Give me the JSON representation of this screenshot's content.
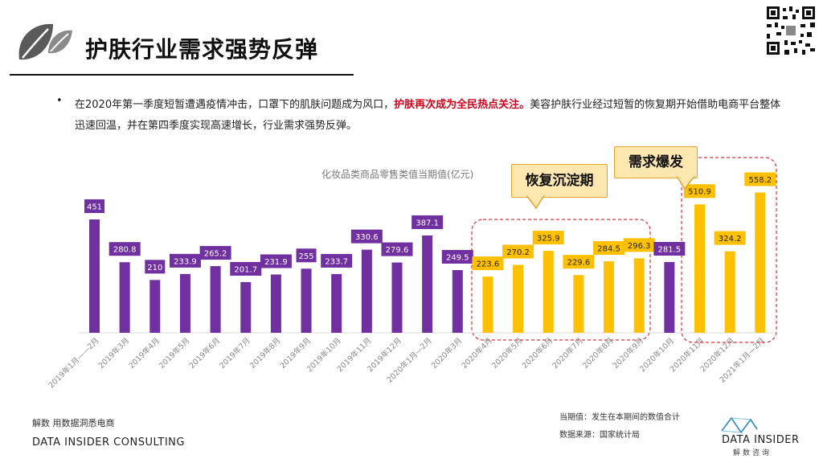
{
  "header": {
    "title": "护肤行业需求强势反弹",
    "bullet": "•"
  },
  "body": {
    "text_before": "在2020年第一季度短暂遭遇疫情冲击，口罩下的肌肤问题成为风口，",
    "text_highlight": "护肤再次成为全民热点关注。",
    "text_after": "美容护肤行业经过短暂的恢复期开始借助电商平台整体迅速回温，并在第四季度实现高速增长，行业需求强势反弹。"
  },
  "callouts": {
    "recovery": "恢复沉淀期",
    "burst": "需求爆发"
  },
  "footer": {
    "source_left": "解数 用数据洞悉电商",
    "company": "DATA INSIDER CONSULTING",
    "note1": "当期值：发生在本期间的数值合计",
    "note2": "数据来源：国家统计局",
    "brand_name": "DATA INSIDER",
    "brand_sub": "解数咨询"
  },
  "colors": {
    "purple": "#7030a0",
    "yellow": "#ffc000",
    "highlight_red": "#d0021b",
    "dash_red": "#e0303a"
  },
  "chart_data": {
    "type": "bar",
    "title": "化妆品类商品零售类值当期值(亿元)",
    "categories": [
      "2019年1月——2月",
      "2019年3月",
      "2019年4月",
      "2019年5月",
      "2019年6月",
      "2019年7月",
      "2019年8月",
      "2019年9月",
      "2019年10月",
      "2019年11月",
      "2019年12月",
      "2020年1月—2月",
      "2020年3月",
      "2020年4月",
      "2020年5月",
      "2020年6月",
      "2020年7月",
      "2020年8月",
      "2020年9月",
      "2020年10月",
      "2020年11月",
      "2020年12月",
      "2021年1月—2月"
    ],
    "values": [
      451,
      280.8,
      210,
      233.9,
      265.2,
      201.7,
      231.9,
      255,
      233.7,
      330.6,
      279.6,
      387.1,
      249.5,
      223.6,
      270.2,
      325.9,
      229.6,
      284.5,
      296.3,
      281.5,
      510.9,
      324.2,
      558.2
    ],
    "labels": [
      "451",
      "280.8",
      "210",
      "233.9",
      "265.2",
      "201.7",
      "231.9",
      "255",
      "233.7",
      "330.6",
      "279.6",
      "387.1",
      "249.5",
      "223.6",
      "270.2",
      "325.9",
      "229.6",
      "284.5",
      "296.3",
      "281.5",
      "510.9",
      "324.2",
      "558.2"
    ],
    "highlight": [
      "p",
      "p",
      "p",
      "p",
      "p",
      "p",
      "p",
      "p",
      "p",
      "p",
      "p",
      "p",
      "p",
      "y",
      "y",
      "y",
      "y",
      "y",
      "y",
      "p",
      "y",
      "y",
      "y"
    ],
    "xlabel": "",
    "ylabel": "",
    "ylim": [
      0,
      600
    ]
  }
}
